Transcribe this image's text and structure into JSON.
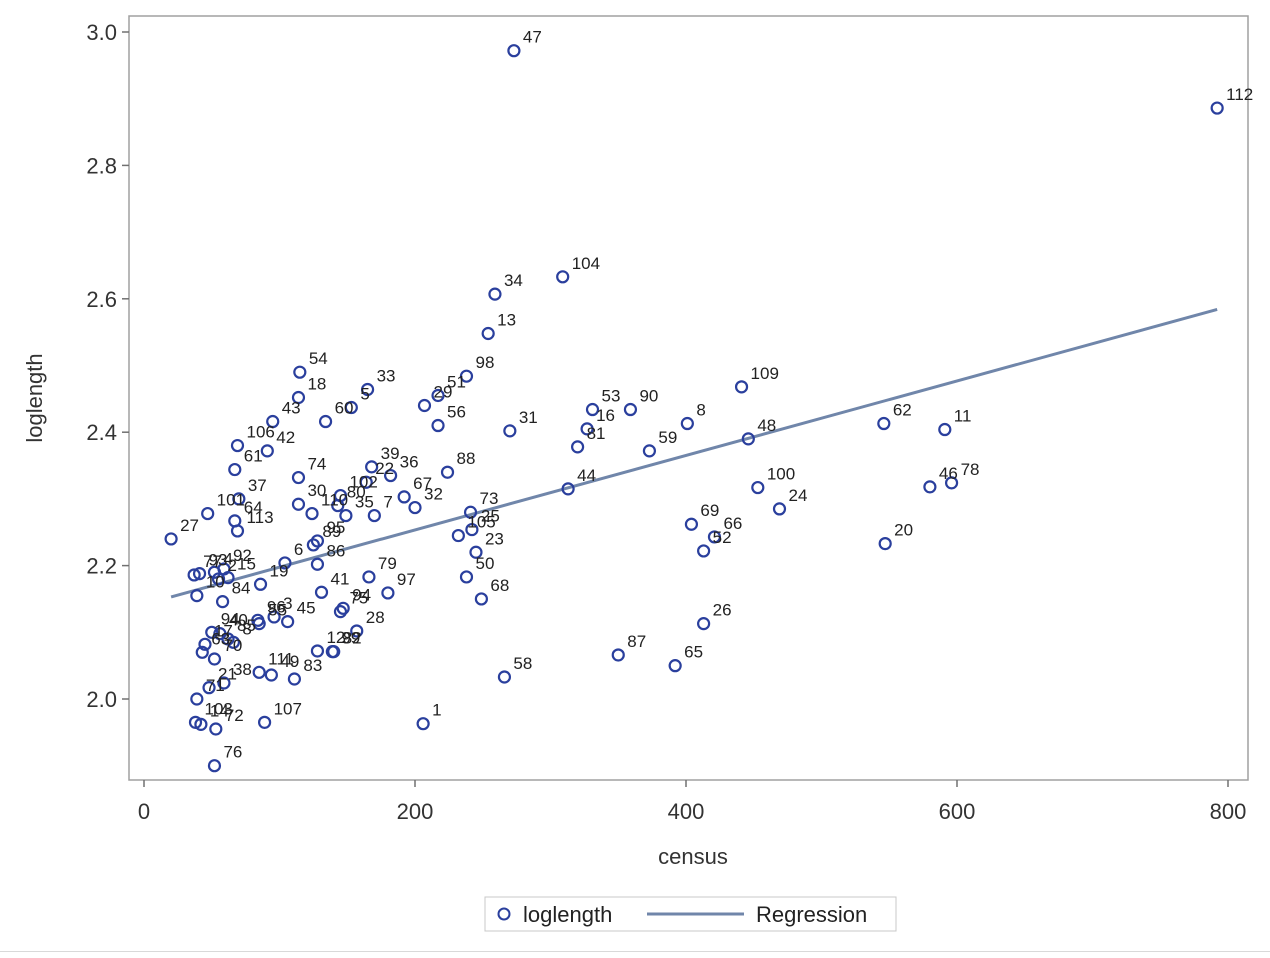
{
  "chart_data": {
    "type": "scatter",
    "title": "",
    "xlabel": "census",
    "ylabel": "loglength",
    "xlim": [
      -10,
      810
    ],
    "ylim": [
      1.88,
      3.03
    ],
    "x_ticks": [
      0,
      200,
      400,
      600,
      800
    ],
    "y_ticks": [
      2.0,
      2.2,
      2.4,
      2.6,
      2.8,
      3.0
    ],
    "x_tick_labels": [
      "0",
      "200",
      "400",
      "600",
      "800"
    ],
    "y_tick_labels": [
      "2.0",
      "2.2",
      "2.4",
      "2.6",
      "2.8",
      "3.0"
    ],
    "grid": false,
    "legend_position": "bottom-center",
    "legend": [
      {
        "name": "loglength",
        "marker": "circle"
      },
      {
        "name": "Regression",
        "marker": "line"
      }
    ],
    "colors": {
      "points": "#2a3f9d",
      "regression": "#7086aa",
      "frame": "#a0a0a0"
    },
    "series": [
      {
        "name": "loglength",
        "points": [
          {
            "x": 273,
            "y": 2.972,
            "label": "47"
          },
          {
            "x": 792,
            "y": 2.886,
            "label": "112"
          },
          {
            "x": 309,
            "y": 2.633,
            "label": "104"
          },
          {
            "x": 259,
            "y": 2.607,
            "label": "34"
          },
          {
            "x": 254,
            "y": 2.548,
            "label": "13"
          },
          {
            "x": 238,
            "y": 2.484,
            "label": "98"
          },
          {
            "x": 115,
            "y": 2.49,
            "label": "54"
          },
          {
            "x": 441,
            "y": 2.468,
            "label": "109"
          },
          {
            "x": 165,
            "y": 2.464,
            "label": "33"
          },
          {
            "x": 217,
            "y": 2.455,
            "label": "51"
          },
          {
            "x": 114,
            "y": 2.452,
            "label": "18"
          },
          {
            "x": 153,
            "y": 2.437,
            "label": "5"
          },
          {
            "x": 207,
            "y": 2.44,
            "label": "29"
          },
          {
            "x": 331,
            "y": 2.434,
            "label": "53"
          },
          {
            "x": 359,
            "y": 2.434,
            "label": "90"
          },
          {
            "x": 134,
            "y": 2.416,
            "label": "60"
          },
          {
            "x": 95,
            "y": 2.416,
            "label": "43"
          },
          {
            "x": 217,
            "y": 2.41,
            "label": "56"
          },
          {
            "x": 270,
            "y": 2.402,
            "label": "31"
          },
          {
            "x": 401,
            "y": 2.413,
            "label": "8"
          },
          {
            "x": 546,
            "y": 2.413,
            "label": "62"
          },
          {
            "x": 591,
            "y": 2.404,
            "label": "11"
          },
          {
            "x": 446,
            "y": 2.39,
            "label": "48"
          },
          {
            "x": 327,
            "y": 2.405,
            "label": "16"
          },
          {
            "x": 320,
            "y": 2.378,
            "label": "81"
          },
          {
            "x": 373,
            "y": 2.372,
            "label": "59"
          },
          {
            "x": 69,
            "y": 2.38,
            "label": "106"
          },
          {
            "x": 91,
            "y": 2.372,
            "label": "42"
          },
          {
            "x": 67,
            "y": 2.344,
            "label": "61"
          },
          {
            "x": 168,
            "y": 2.348,
            "label": "39"
          },
          {
            "x": 224,
            "y": 2.34,
            "label": "88"
          },
          {
            "x": 182,
            "y": 2.335,
            "label": "36"
          },
          {
            "x": 114,
            "y": 2.332,
            "label": "74"
          },
          {
            "x": 164,
            "y": 2.325,
            "label": "22"
          },
          {
            "x": 453,
            "y": 2.317,
            "label": "100"
          },
          {
            "x": 580,
            "y": 2.318,
            "label": "46"
          },
          {
            "x": 596,
            "y": 2.324,
            "label": "78"
          },
          {
            "x": 313,
            "y": 2.315,
            "label": "44"
          },
          {
            "x": 145,
            "y": 2.305,
            "label": "102"
          },
          {
            "x": 192,
            "y": 2.303,
            "label": "67"
          },
          {
            "x": 70,
            "y": 2.3,
            "label": "37"
          },
          {
            "x": 114,
            "y": 2.292,
            "label": "30"
          },
          {
            "x": 143,
            "y": 2.29,
            "label": "80"
          },
          {
            "x": 200,
            "y": 2.287,
            "label": "32"
          },
          {
            "x": 469,
            "y": 2.285,
            "label": "24"
          },
          {
            "x": 47,
            "y": 2.278,
            "label": "101"
          },
          {
            "x": 124,
            "y": 2.278,
            "label": "110"
          },
          {
            "x": 149,
            "y": 2.275,
            "label": "35"
          },
          {
            "x": 241,
            "y": 2.28,
            "label": "73"
          },
          {
            "x": 170,
            "y": 2.275,
            "label": "7"
          },
          {
            "x": 67,
            "y": 2.267,
            "label": "64"
          },
          {
            "x": 404,
            "y": 2.262,
            "label": "69"
          },
          {
            "x": 242,
            "y": 2.254,
            "label": "25"
          },
          {
            "x": 232,
            "y": 2.245,
            "label": "105"
          },
          {
            "x": 69,
            "y": 2.252,
            "label": "113"
          },
          {
            "x": 128,
            "y": 2.237,
            "label": "95"
          },
          {
            "x": 125,
            "y": 2.231,
            "label": "89"
          },
          {
            "x": 421,
            "y": 2.243,
            "label": "66"
          },
          {
            "x": 547,
            "y": 2.233,
            "label": "20"
          },
          {
            "x": 20,
            "y": 2.24,
            "label": "27"
          },
          {
            "x": 245,
            "y": 2.22,
            "label": "23"
          },
          {
            "x": 413,
            "y": 2.222,
            "label": "52"
          },
          {
            "x": 104,
            "y": 2.204,
            "label": "6"
          },
          {
            "x": 128,
            "y": 2.202,
            "label": "86"
          },
          {
            "x": 59,
            "y": 2.195,
            "label": "92"
          },
          {
            "x": 52,
            "y": 2.19,
            "label": "4"
          },
          {
            "x": 41,
            "y": 2.188,
            "label": "93"
          },
          {
            "x": 37,
            "y": 2.186,
            "label": "77"
          },
          {
            "x": 166,
            "y": 2.183,
            "label": "79"
          },
          {
            "x": 238,
            "y": 2.183,
            "label": "50"
          },
          {
            "x": 62,
            "y": 2.182,
            "label": "15"
          },
          {
            "x": 55,
            "y": 2.18,
            "label": "2"
          },
          {
            "x": 86,
            "y": 2.172,
            "label": "19"
          },
          {
            "x": 180,
            "y": 2.159,
            "label": "97"
          },
          {
            "x": 131,
            "y": 2.16,
            "label": "41"
          },
          {
            "x": 39,
            "y": 2.155,
            "label": "10"
          },
          {
            "x": 249,
            "y": 2.15,
            "label": "68"
          },
          {
            "x": 58,
            "y": 2.146,
            "label": "84"
          },
          {
            "x": 147,
            "y": 2.136,
            "label": "94"
          },
          {
            "x": 145,
            "y": 2.131,
            "label": "75"
          },
          {
            "x": 96,
            "y": 2.123,
            "label": "3"
          },
          {
            "x": 84,
            "y": 2.118,
            "label": "96"
          },
          {
            "x": 85,
            "y": 2.113,
            "label": "55"
          },
          {
            "x": 106,
            "y": 2.116,
            "label": "45"
          },
          {
            "x": 413,
            "y": 2.113,
            "label": "26"
          },
          {
            "x": 50,
            "y": 2.1,
            "label": "94"
          },
          {
            "x": 157,
            "y": 2.102,
            "label": "28"
          },
          {
            "x": 56,
            "y": 2.098,
            "label": "40"
          },
          {
            "x": 62,
            "y": 2.09,
            "label": "85"
          },
          {
            "x": 66,
            "y": 2.085,
            "label": "8"
          },
          {
            "x": 45,
            "y": 2.082,
            "label": "17"
          },
          {
            "x": 128,
            "y": 2.072,
            "label": "12"
          },
          {
            "x": 139,
            "y": 2.071,
            "label": "99"
          },
          {
            "x": 350,
            "y": 2.066,
            "label": "87"
          },
          {
            "x": 43,
            "y": 2.07,
            "label": "63"
          },
          {
            "x": 52,
            "y": 2.06,
            "label": "70"
          },
          {
            "x": 392,
            "y": 2.05,
            "label": "65"
          },
          {
            "x": 85,
            "y": 2.04,
            "label": "111"
          },
          {
            "x": 94,
            "y": 2.036,
            "label": "49"
          },
          {
            "x": 266,
            "y": 2.033,
            "label": "58"
          },
          {
            "x": 111,
            "y": 2.03,
            "label": "83"
          },
          {
            "x": 59,
            "y": 2.024,
            "label": "38"
          },
          {
            "x": 48,
            "y": 2.017,
            "label": "21"
          },
          {
            "x": 39,
            "y": 2.0,
            "label": "71"
          },
          {
            "x": 206,
            "y": 1.963,
            "label": "1"
          },
          {
            "x": 89,
            "y": 1.965,
            "label": "107"
          },
          {
            "x": 38,
            "y": 1.965,
            "label": "103"
          },
          {
            "x": 42,
            "y": 1.962,
            "label": "14"
          },
          {
            "x": 53,
            "y": 1.955,
            "label": "72"
          },
          {
            "x": 52,
            "y": 1.9,
            "label": "76"
          },
          {
            "x": 140,
            "y": 2.071,
            "label": "82"
          }
        ]
      },
      {
        "name": "Regression",
        "line": {
          "x": [
            20,
            792
          ],
          "y": [
            2.153,
            2.584
          ]
        }
      }
    ]
  }
}
